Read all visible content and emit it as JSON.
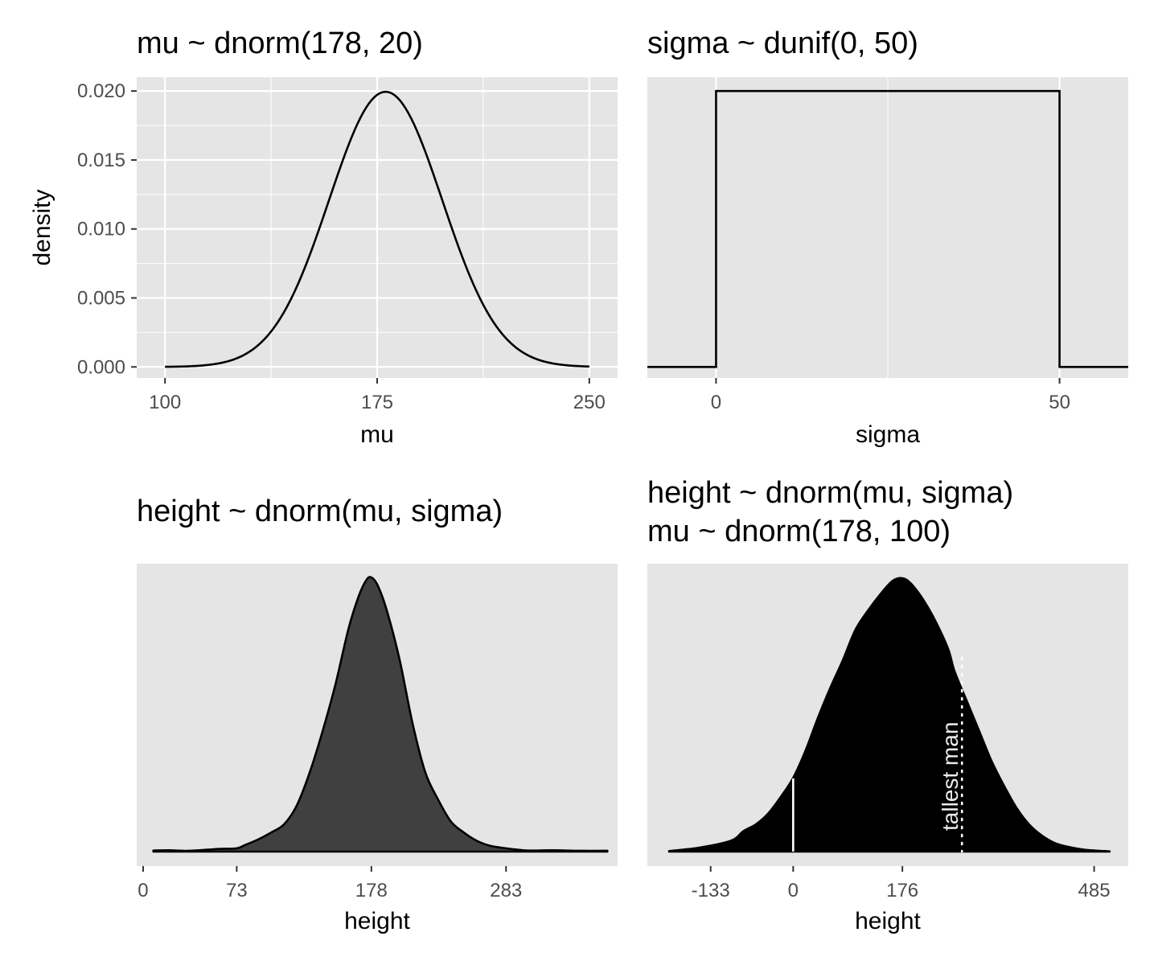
{
  "colors": {
    "panel_bg": "#e5e5e5",
    "grid": "#ffffff",
    "ink": "#000000",
    "fill_dark": "#404040",
    "annotation": "#ebebeb"
  },
  "chart_data": [
    {
      "type": "line",
      "title": "mu ~ dnorm(178, 20)",
      "xlabel": "mu",
      "ylabel": "density",
      "xlim": [
        90,
        260
      ],
      "ylim": [
        -0.0008,
        0.021
      ],
      "x_ticks": [
        100,
        175,
        250
      ],
      "x_tick_labels": [
        "100",
        "175",
        "250"
      ],
      "y_ticks": [
        0,
        0.005,
        0.01,
        0.015,
        0.02
      ],
      "y_tick_labels": [
        "0.000",
        "0.005",
        "0.010",
        "0.015",
        "0.020"
      ],
      "grid": true,
      "series": [
        {
          "distribution": "normal",
          "mean": 178,
          "sd": 20,
          "x_range": [
            100,
            250
          ]
        }
      ]
    },
    {
      "type": "line",
      "title": "sigma ~ dunif(0, 50)",
      "xlabel": "sigma",
      "xlim": [
        -10,
        60
      ],
      "ylim": [
        -0.0008,
        0.021
      ],
      "x_ticks": [
        0,
        50
      ],
      "x_tick_labels": [
        "0",
        "50"
      ],
      "y_ticks": [],
      "grid": true,
      "series": [
        {
          "distribution": "uniform",
          "min": 0,
          "max": 50,
          "density": 0.02,
          "x_range": [
            -10,
            60
          ]
        }
      ]
    },
    {
      "type": "area",
      "title": "height ~ dnorm(mu, sigma)",
      "xlabel": "height",
      "xlim": [
        -5,
        370
      ],
      "x_ticks": [
        0,
        73,
        178,
        283
      ],
      "x_tick_labels": [
        "0",
        "73",
        "178",
        "283"
      ],
      "y_ticks": [],
      "grid": false,
      "series": [
        {
          "x": [
            8,
            20,
            35,
            50,
            60,
            73,
            80,
            90,
            100,
            110,
            120,
            130,
            140,
            150,
            160,
            168,
            174,
            178,
            183,
            190,
            200,
            210,
            220,
            230,
            240,
            250,
            260,
            270,
            280,
            290,
            300,
            320,
            340,
            362
          ],
          "density": [
            0.4,
            0.5,
            0.3,
            0.7,
            1.0,
            1.2,
            2.5,
            4.5,
            7,
            10,
            17,
            29,
            44,
            61,
            81,
            93,
            99,
            100,
            97,
            88,
            70,
            47,
            29,
            19,
            11,
            7,
            4,
            2.2,
            1.4,
            0.8,
            0.4,
            0.5,
            0.3,
            0.3
          ]
        }
      ]
    },
    {
      "type": "area",
      "title": "height ~ dnorm(mu, sigma)\nmu ~ dnorm(178, 100)",
      "title_lines": [
        "height ~ dnorm(mu, sigma)",
        "mu ~ dnorm(178, 100)"
      ],
      "xlabel": "height",
      "xlim": [
        -235,
        540
      ],
      "x_ticks": [
        -133,
        0,
        176,
        485
      ],
      "x_tick_labels": [
        "-133",
        "0",
        "176",
        "485"
      ],
      "y_ticks": [],
      "grid": false,
      "series": [
        {
          "x": [
            -200,
            -150,
            -100,
            -80,
            -60,
            -40,
            -20,
            0,
            20,
            40,
            60,
            80,
            100,
            120,
            140,
            160,
            176,
            190,
            210,
            230,
            250,
            260,
            280,
            300,
            320,
            340,
            360,
            380,
            400,
            420,
            440,
            470,
            510
          ],
          "density": [
            0.2,
            1.5,
            4,
            7.5,
            10,
            14,
            20,
            27,
            37,
            49,
            60,
            70,
            81,
            88,
            94,
            99,
            100,
            98,
            92,
            84,
            74,
            66,
            55,
            44,
            33,
            24,
            16,
            10,
            6,
            3.3,
            1.9,
            0.7,
            0.1
          ]
        }
      ],
      "annotations": [
        {
          "type": "vline",
          "x": 0,
          "style": "solid"
        },
        {
          "type": "vline",
          "x": 272,
          "style": "dotted"
        }
      ],
      "text_annotations": [
        {
          "text": "tallest man"
        }
      ]
    }
  ]
}
